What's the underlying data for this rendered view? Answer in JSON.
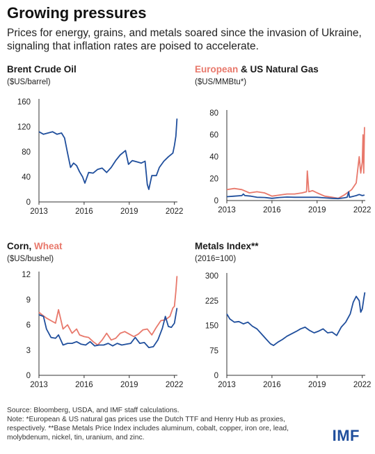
{
  "header": {
    "title": "Growing pressures",
    "subtitle": "Prices for energy, grains, and metals soared since the invasion of Ukraine, signaling that inflation rates are poised to accelerate."
  },
  "colors": {
    "blue": "#1f4e9c",
    "red": "#e8786b",
    "axis": "#333333"
  },
  "chart_data": [
    {
      "type": "line",
      "title": "Brent Crude Oil",
      "ylabel": "($US/barrel)",
      "xlim": [
        2013,
        2022.2
      ],
      "ylim": [
        0,
        160
      ],
      "yticks": [
        0,
        40,
        80,
        120,
        160
      ],
      "xticks": [
        2013,
        2016,
        2019,
        2022
      ],
      "series": [
        {
          "color": "#1f4e9c",
          "x": [
            2013,
            2013.3,
            2013.6,
            2013.9,
            2014.2,
            2014.5,
            2014.7,
            2014.9,
            2015.1,
            2015.3,
            2015.5,
            2015.7,
            2015.9,
            2016.05,
            2016.3,
            2016.6,
            2016.9,
            2017.2,
            2017.5,
            2017.8,
            2018.1,
            2018.4,
            2018.75,
            2018.95,
            2019.2,
            2019.5,
            2019.8,
            2020.05,
            2020.2,
            2020.3,
            2020.5,
            2020.8,
            2021.0,
            2021.3,
            2021.6,
            2021.9,
            2022.0,
            2022.1,
            2022.17
          ],
          "y": [
            112,
            108,
            110,
            112,
            108,
            110,
            102,
            78,
            55,
            62,
            58,
            48,
            40,
            30,
            47,
            46,
            52,
            54,
            47,
            55,
            66,
            75,
            82,
            60,
            66,
            64,
            62,
            65,
            28,
            20,
            42,
            42,
            55,
            65,
            72,
            78,
            90,
            105,
            133
          ]
        }
      ]
    },
    {
      "type": "line",
      "title_a": "European",
      "title_b": "& US Natural Gas",
      "ylabel": "($US/MMBtu*)",
      "xlim": [
        2013,
        2022.2
      ],
      "ylim": [
        0,
        80
      ],
      "yticks": [
        0,
        20,
        40,
        60,
        80
      ],
      "xticks": [
        2013,
        2016,
        2019,
        2022
      ],
      "series": [
        {
          "name": "European",
          "color": "#e8786b",
          "x": [
            2013,
            2013.5,
            2014.0,
            2014.5,
            2015.0,
            2015.5,
            2016.0,
            2016.5,
            2017.0,
            2017.5,
            2018.0,
            2018.3,
            2018.35,
            2018.45,
            2018.7,
            2019.0,
            2019.5,
            2020.0,
            2020.4,
            2020.8,
            2021.0,
            2021.3,
            2021.6,
            2021.8,
            2021.9,
            2022.0,
            2022.05,
            2022.1,
            2022.15
          ],
          "y": [
            10,
            11,
            10,
            7,
            8,
            7,
            4,
            5,
            6,
            6,
            7,
            8,
            27,
            8,
            9,
            7,
            4,
            3,
            2,
            5,
            7,
            10,
            16,
            40,
            25,
            35,
            60,
            25,
            67
          ]
        },
        {
          "name": "US",
          "color": "#1f4e9c",
          "x": [
            2013,
            2013.5,
            2014.0,
            2014.1,
            2014.2,
            2014.6,
            2015.0,
            2015.5,
            2016.0,
            2016.5,
            2017.0,
            2017.5,
            2018.0,
            2018.5,
            2019.0,
            2019.5,
            2020.0,
            2020.4,
            2020.8,
            2021.0,
            2021.1,
            2021.15,
            2021.3,
            2021.6,
            2021.8,
            2022.0,
            2022.15
          ],
          "y": [
            3.5,
            4,
            4.5,
            6,
            4.5,
            4,
            3,
            2.8,
            2,
            2.8,
            3.2,
            3,
            3,
            3,
            3,
            2.5,
            2,
            1.8,
            2.5,
            3,
            8,
            3,
            3.5,
            4.5,
            5.5,
            4.5,
            5
          ]
        }
      ]
    },
    {
      "type": "line",
      "title_a": "Corn,",
      "title_b": "Wheat",
      "ylabel": "($US/bushel)",
      "xlim": [
        2013,
        2022.2
      ],
      "ylim": [
        0,
        12
      ],
      "yticks": [
        0,
        3,
        6,
        9,
        12
      ],
      "xticks": [
        2013,
        2016,
        2019,
        2022
      ],
      "series": [
        {
          "name": "Wheat",
          "color": "#e8786b",
          "x": [
            2013,
            2013.2,
            2013.5,
            2013.8,
            2014.1,
            2014.3,
            2014.6,
            2014.9,
            2015.2,
            2015.5,
            2015.7,
            2016.0,
            2016.3,
            2016.6,
            2016.9,
            2017.2,
            2017.5,
            2017.8,
            2018.1,
            2018.4,
            2018.7,
            2019.0,
            2019.3,
            2019.6,
            2019.9,
            2020.2,
            2020.5,
            2020.8,
            2021.1,
            2021.4,
            2021.7,
            2021.9,
            2022.0,
            2022.1,
            2022.17
          ],
          "y": [
            7.5,
            7.2,
            6.8,
            6.5,
            6.2,
            7.8,
            5.5,
            6.0,
            5.0,
            5.5,
            4.8,
            4.6,
            4.5,
            4.0,
            3.6,
            4.2,
            5.0,
            4.2,
            4.4,
            5.0,
            5.2,
            4.9,
            4.6,
            4.9,
            5.4,
            5.5,
            4.8,
            5.7,
            6.5,
            6.6,
            7.0,
            8.0,
            8.2,
            10.0,
            11.8
          ]
        },
        {
          "name": "Corn",
          "color": "#1f4e9c",
          "x": [
            2013,
            2013.3,
            2013.5,
            2013.8,
            2014.1,
            2014.3,
            2014.6,
            2014.9,
            2015.2,
            2015.5,
            2015.8,
            2016.1,
            2016.4,
            2016.7,
            2017.0,
            2017.3,
            2017.6,
            2017.9,
            2018.2,
            2018.5,
            2018.8,
            2019.1,
            2019.4,
            2019.7,
            2020.0,
            2020.3,
            2020.6,
            2020.9,
            2021.2,
            2021.4,
            2021.6,
            2021.8,
            2022.0,
            2022.17
          ],
          "y": [
            7.2,
            7.0,
            5.5,
            4.5,
            4.4,
            4.8,
            3.6,
            3.8,
            3.8,
            4.0,
            3.7,
            3.6,
            4.0,
            3.5,
            3.6,
            3.6,
            3.8,
            3.5,
            3.8,
            3.6,
            3.7,
            3.8,
            4.5,
            3.8,
            3.9,
            3.3,
            3.4,
            4.2,
            5.6,
            7.0,
            5.8,
            5.7,
            6.2,
            8.0
          ]
        }
      ]
    },
    {
      "type": "line",
      "title": "Metals Index**",
      "ylabel": "(2016=100)",
      "xlim": [
        2013,
        2022.2
      ],
      "ylim": [
        0,
        300
      ],
      "yticks": [
        0,
        75,
        150,
        225,
        300
      ],
      "xticks": [
        2013,
        2016,
        2019,
        2022
      ],
      "series": [
        {
          "color": "#1f4e9c",
          "x": [
            2013,
            2013.2,
            2013.5,
            2013.8,
            2014.1,
            2014.4,
            2014.7,
            2015.0,
            2015.3,
            2015.6,
            2015.9,
            2016.1,
            2016.4,
            2016.7,
            2017.0,
            2017.3,
            2017.6,
            2017.9,
            2018.2,
            2018.5,
            2018.8,
            2019.1,
            2019.4,
            2019.7,
            2020.0,
            2020.3,
            2020.6,
            2020.9,
            2021.2,
            2021.4,
            2021.6,
            2021.8,
            2021.9,
            2022.0,
            2022.1,
            2022.17
          ],
          "y": [
            185,
            170,
            160,
            162,
            155,
            160,
            148,
            140,
            125,
            110,
            95,
            90,
            100,
            108,
            118,
            125,
            132,
            140,
            145,
            135,
            128,
            133,
            140,
            128,
            130,
            120,
            145,
            160,
            185,
            220,
            238,
            225,
            190,
            200,
            230,
            250
          ]
        }
      ]
    }
  ],
  "footer": {
    "source": "Source: Bloomberg, USDA, and IMF staff calculations.",
    "note": "Note: *European & US natural gas prices use the Dutch TTF and Henry Hub as proxies, respectively. **Base Metals Price Index includes aluminum, cobalt, copper, iron ore, lead, molybdenum, nickel, tin, uranium, and zinc.",
    "logo": "IMF"
  }
}
